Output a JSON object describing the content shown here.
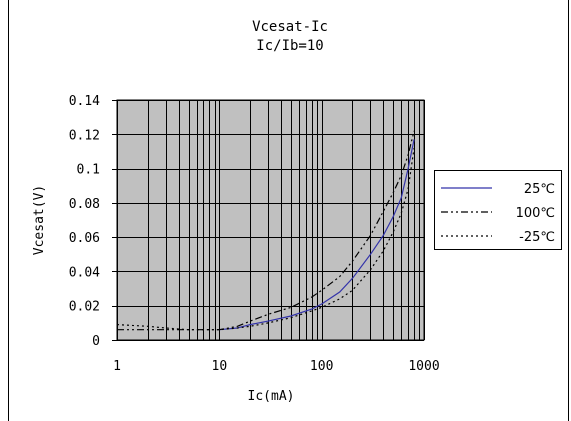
{
  "chart_data": {
    "type": "line",
    "title": "Vcesat-Ic",
    "subtitle": "Ic/Ib=10",
    "xlabel": "Ic(mA)",
    "ylabel": "Vcesat(V)",
    "xscale": "log",
    "xlim": [
      1,
      1000
    ],
    "ylim": [
      0,
      0.14
    ],
    "xticks": [
      "1",
      "10",
      "100",
      "1000"
    ],
    "yticks": [
      "0",
      "0.02",
      "0.04",
      "0.06",
      "0.08",
      "0.1",
      "0.12",
      "0.14"
    ],
    "grid": true,
    "plot_background": "#c0c0c0",
    "legend_position": "right",
    "series": [
      {
        "name": "25℃",
        "style": "solid",
        "color": "#3333aa",
        "x": [
          10,
          15,
          20,
          30,
          50,
          80,
          100,
          150,
          200,
          300,
          400,
          500,
          600,
          700,
          800
        ],
        "y": [
          0.006,
          0.007,
          0.009,
          0.011,
          0.014,
          0.018,
          0.021,
          0.028,
          0.036,
          0.05,
          0.061,
          0.072,
          0.083,
          0.1,
          0.117
        ]
      },
      {
        "name": "100℃",
        "style": "dashdotdot",
        "color": "#000000",
        "x": [
          1,
          3,
          5,
          10,
          15,
          20,
          30,
          50,
          80,
          100,
          150,
          200,
          300,
          400,
          500,
          600,
          700,
          800
        ],
        "y": [
          0.006,
          0.006,
          0.006,
          0.006,
          0.008,
          0.011,
          0.015,
          0.019,
          0.025,
          0.029,
          0.037,
          0.046,
          0.061,
          0.075,
          0.086,
          0.096,
          0.108,
          0.122
        ]
      },
      {
        "name": "-25℃",
        "style": "dotted",
        "color": "#000000",
        "x": [
          1,
          2,
          3,
          5,
          7,
          10,
          15,
          20,
          30,
          50,
          80,
          100,
          150,
          200,
          300,
          400,
          500,
          600,
          700,
          800
        ],
        "y": [
          0.009,
          0.008,
          0.007,
          0.006,
          0.006,
          0.006,
          0.007,
          0.008,
          0.01,
          0.013,
          0.017,
          0.019,
          0.024,
          0.029,
          0.041,
          0.052,
          0.063,
          0.074,
          0.088,
          0.112
        ]
      }
    ]
  }
}
